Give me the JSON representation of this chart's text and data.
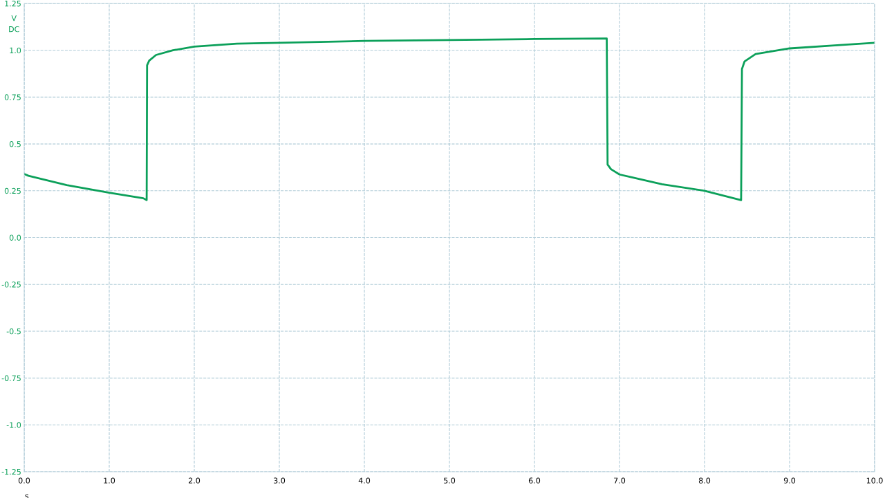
{
  "chart_data": {
    "type": "line",
    "xlabel": "s",
    "ylabel": "V\nDC",
    "x": [
      0,
      0.05,
      0.5,
      1.0,
      1.4,
      1.44,
      1.445,
      1.47,
      1.55,
      1.75,
      2.0,
      2.5,
      3.0,
      4.0,
      5.0,
      6.0,
      6.85,
      6.86,
      6.9,
      7.0,
      7.5,
      8.0,
      8.43,
      8.44,
      8.47,
      8.6,
      9.0,
      9.5,
      10.0
    ],
    "series": [
      {
        "color": "#0ca05a",
        "values": [
          0.34,
          0.33,
          0.28,
          0.24,
          0.21,
          0.2,
          0.92,
          0.945,
          0.975,
          1.0,
          1.02,
          1.035,
          1.04,
          1.05,
          1.055,
          1.06,
          1.063,
          0.39,
          0.365,
          0.337,
          0.285,
          0.25,
          0.2,
          0.9,
          0.94,
          0.98,
          1.01,
          1.025,
          1.04
        ]
      }
    ],
    "xlim": [
      0,
      10
    ],
    "ylim": [
      -1.25,
      1.25
    ],
    "xticks": [
      {
        "value": 0,
        "label": "0.0"
      },
      {
        "value": 1,
        "label": "1.0"
      },
      {
        "value": 2,
        "label": "2.0"
      },
      {
        "value": 3,
        "label": "3.0"
      },
      {
        "value": 4,
        "label": "4.0"
      },
      {
        "value": 5,
        "label": "5.0"
      },
      {
        "value": 6,
        "label": "6.0"
      },
      {
        "value": 7,
        "label": "7.0"
      },
      {
        "value": 8,
        "label": "8.0"
      },
      {
        "value": 9,
        "label": "9.0"
      },
      {
        "value": 10,
        "label": "10.0"
      }
    ],
    "yticks": [
      -1.25,
      {
        "value": -1.0,
        "label": "-1.0"
      },
      -0.75,
      -0.5,
      -0.25,
      {
        "value": 0,
        "label": "0.0"
      },
      0.25,
      0.5,
      0.75,
      {
        "value": 1.0,
        "label": "1.0"
      },
      1.25
    ],
    "grid": true,
    "marker": "none",
    "line_style": "solid",
    "legend": false
  }
}
